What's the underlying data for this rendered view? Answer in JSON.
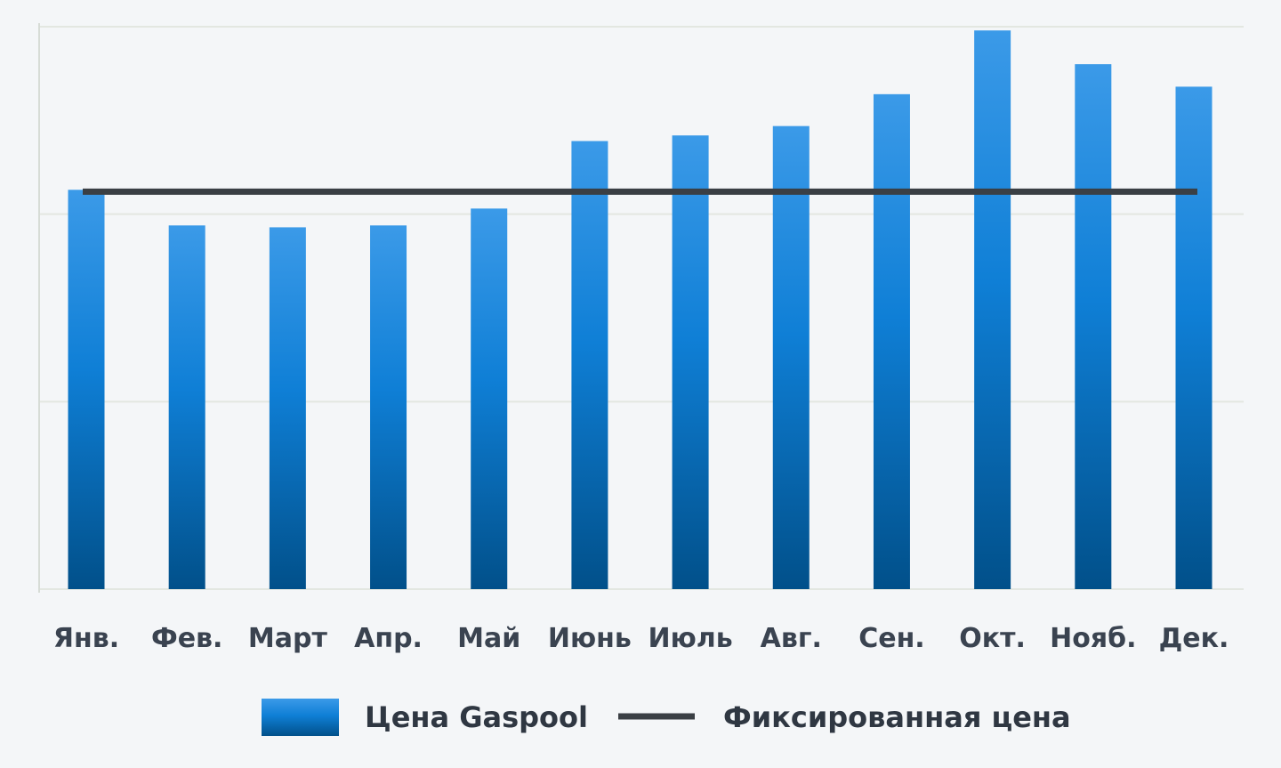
{
  "colors": {
    "background": "#f4f6f8",
    "grid": "#e3e7e1",
    "axis": "#d7dcd6",
    "bar_top": "#3b9ae8",
    "bar_mid": "#0f7fd6",
    "bar_bottom": "#01508a",
    "fixed_line": "#3a3f44",
    "text": "#3a4350"
  },
  "chart_data": {
    "type": "bar",
    "categories": [
      "Янв.",
      "Фев.",
      "Март",
      "Апр.",
      "Май",
      "Июнь",
      "Июль",
      "Авг.",
      "Сен.",
      "Окт.",
      "Нояб.",
      "Дек."
    ],
    "series": [
      {
        "name": "Цена Gaspool",
        "type": "bar",
        "values": [
          2.13,
          1.94,
          1.93,
          1.94,
          2.03,
          2.39,
          2.42,
          2.47,
          2.64,
          2.98,
          2.8,
          2.68
        ]
      },
      {
        "name": "Фиксированная цена",
        "type": "line",
        "values": [
          2.12,
          2.12,
          2.12,
          2.12,
          2.12,
          2.12,
          2.12,
          2.12,
          2.12,
          2.12,
          2.12,
          2.12
        ]
      }
    ],
    "ylim": [
      0,
      3
    ],
    "y_gridlines": [
      1,
      2,
      3
    ],
    "grid": true,
    "y_tick_labels_shown": false,
    "legend_position": "bottom-center"
  }
}
